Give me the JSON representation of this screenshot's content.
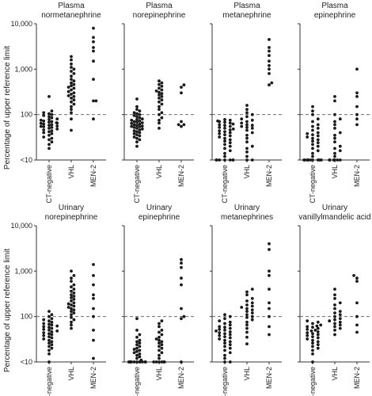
{
  "figure": {
    "ylabel": "Percentage of upper reference limit",
    "reference_line_value": 100
  },
  "chart_data": [
    {
      "type": "scatter",
      "title": "Plasma\nnormetanephrine",
      "categories": [
        "CT-negative",
        "VHL",
        "MEN-2"
      ],
      "y_scale": "log",
      "ylim": [
        "<10",
        10000
      ],
      "y_ticks": [
        "<10",
        "100",
        "1,000",
        "10,000"
      ],
      "series": [
        {
          "values": [
            18,
            22,
            25,
            28,
            30,
            32,
            35,
            38,
            40,
            42,
            44,
            46,
            48,
            50,
            52,
            54,
            55,
            56,
            58,
            60,
            62,
            64,
            65,
            66,
            68,
            70,
            72,
            75,
            78,
            80,
            85,
            90,
            95,
            100,
            105,
            110,
            120,
            250
          ]
        },
        {
          "values": [
            45,
            80,
            110,
            130,
            150,
            170,
            190,
            210,
            230,
            250,
            260,
            280,
            300,
            320,
            350,
            380,
            400,
            430,
            460,
            500,
            550,
            600,
            700,
            800,
            900,
            1000,
            1100,
            1300,
            1600,
            1900
          ]
        },
        {
          "values": [
            80,
            200,
            200,
            600,
            1500,
            2500,
            3000,
            4000,
            5000,
            8000
          ]
        }
      ]
    },
    {
      "type": "scatter",
      "title": "Plasma\nnorepinephrine",
      "categories": [
        "CT-negative",
        "VHL",
        "MEN-2"
      ],
      "y_scale": "log",
      "ylim": [
        "<10",
        10000
      ],
      "y_ticks": [
        "<10",
        "100",
        "1,000",
        "10,000"
      ],
      "series": [
        {
          "values": [
            20,
            25,
            28,
            30,
            32,
            34,
            36,
            38,
            40,
            42,
            44,
            46,
            48,
            50,
            52,
            54,
            55,
            56,
            58,
            60,
            62,
            64,
            66,
            68,
            70,
            72,
            75,
            78,
            80,
            85,
            90,
            95,
            100,
            105,
            110,
            120,
            130,
            150,
            220
          ]
        },
        {
          "values": [
            50,
            65,
            75,
            85,
            100,
            110,
            130,
            150,
            170,
            190,
            210,
            230,
            250,
            270,
            290,
            310,
            330,
            350,
            380,
            420,
            460,
            500,
            550
          ]
        },
        {
          "values": [
            55,
            60,
            60,
            70,
            300,
            400,
            450
          ]
        }
      ]
    },
    {
      "type": "scatter",
      "title": "Plasma\nmetanephrine",
      "categories": [
        "CT-negative",
        "VHL",
        "MEN-2"
      ],
      "y_scale": "log",
      "ylim": [
        "<10",
        10000
      ],
      "y_ticks": [
        "<10",
        "100",
        "1,000",
        "10,000"
      ],
      "series": [
        {
          "values": [
            10,
            10,
            10,
            10,
            10,
            10,
            10,
            12,
            14,
            16,
            18,
            20,
            22,
            24,
            26,
            28,
            30,
            32,
            34,
            36,
            38,
            40,
            42,
            44,
            46,
            48,
            50,
            52,
            55,
            58,
            60,
            62,
            65,
            68,
            70,
            72,
            75,
            78
          ]
        },
        {
          "values": [
            10,
            10,
            12,
            15,
            18,
            20,
            25,
            30,
            35,
            40,
            45,
            50,
            52,
            55,
            58,
            60,
            65,
            70,
            75,
            80,
            90,
            100,
            110,
            130,
            160
          ]
        },
        {
          "values": [
            450,
            500,
            800,
            1000,
            1200,
            1500,
            2000,
            2500,
            3000,
            4500
          ]
        }
      ]
    },
    {
      "type": "scatter",
      "title": "Plasma\nepinephrine",
      "categories": [
        "CT-negative",
        "VHL",
        "MEN-2"
      ],
      "y_scale": "log",
      "ylim": [
        "<10",
        10000
      ],
      "y_ticks": [
        "<10",
        "100",
        "1,000",
        "10,000"
      ],
      "series": [
        {
          "values": [
            10,
            10,
            10,
            10,
            10,
            10,
            10,
            10,
            10,
            10,
            12,
            14,
            16,
            18,
            20,
            22,
            24,
            26,
            28,
            30,
            32,
            34,
            36,
            38,
            40,
            45,
            50,
            55,
            60,
            70,
            80,
            100,
            120,
            150
          ]
        },
        {
          "values": [
            10,
            10,
            10,
            10,
            10,
            10,
            12,
            14,
            16,
            18,
            20,
            25,
            30,
            35,
            40,
            50,
            60,
            70,
            80,
            100,
            200,
            250
          ]
        },
        {
          "values": [
            60,
            80,
            100,
            150,
            250,
            300,
            1000
          ]
        }
      ]
    },
    {
      "type": "scatter",
      "title": "Urinary\nnorepinephrine",
      "categories": [
        "CT-negative",
        "VHL",
        "MEN-2"
      ],
      "y_scale": "log",
      "ylim": [
        "<10",
        10000
      ],
      "y_ticks": [
        "<10",
        "100",
        "1,000",
        "10,000"
      ],
      "series": [
        {
          "values": [
            10,
            15,
            18,
            20,
            22,
            24,
            26,
            28,
            30,
            32,
            34,
            36,
            38,
            40,
            42,
            44,
            46,
            48,
            50,
            52,
            55,
            58,
            60,
            62,
            65,
            68,
            70,
            75,
            80,
            85,
            90,
            100,
            110,
            130
          ]
        },
        {
          "values": [
            55,
            65,
            75,
            85,
            95,
            110,
            120,
            130,
            140,
            150,
            160,
            170,
            180,
            190,
            200,
            220,
            240,
            260,
            280,
            300,
            330,
            360,
            400,
            450,
            500,
            600,
            700,
            800,
            1000
          ]
        },
        {
          "values": [
            12,
            30,
            50,
            100,
            150,
            250,
            300,
            500,
            800,
            1400
          ]
        }
      ]
    },
    {
      "type": "scatter",
      "title": "Urinary\nepinephrine",
      "categories": [
        "CT-negative",
        "VHL",
        "MEN-2"
      ],
      "y_scale": "log",
      "ylim": [
        "<10",
        10000
      ],
      "y_ticks": [
        "<10",
        "100",
        "1,000",
        "10,000"
      ],
      "series": [
        {
          "values": [
            10,
            10,
            10,
            10,
            10,
            10,
            10,
            10,
            10,
            10,
            10,
            10,
            11,
            12,
            13,
            14,
            15,
            16,
            17,
            18,
            19,
            20,
            22,
            24,
            26,
            28,
            30,
            35,
            40,
            50,
            90
          ]
        },
        {
          "values": [
            10,
            10,
            10,
            10,
            10,
            10,
            12,
            14,
            16,
            18,
            20,
            22,
            24,
            26,
            28,
            30,
            32,
            35,
            40,
            45,
            50,
            60,
            70,
            80
          ]
        },
        {
          "values": [
            10,
            90,
            100,
            150,
            500,
            700,
            1200,
            1500,
            1800
          ]
        }
      ]
    },
    {
      "type": "scatter",
      "title": "Urinary\nmetanephrines",
      "categories": [
        "CT-negative",
        "VHL",
        "MEN-2"
      ],
      "y_scale": "log",
      "ylim": [
        "<10",
        10000
      ],
      "y_ticks": [
        "<10",
        "100",
        "1,000",
        "10,000"
      ],
      "series": [
        {
          "values": [
            10,
            10,
            12,
            14,
            16,
            18,
            20,
            22,
            24,
            26,
            28,
            30,
            32,
            34,
            36,
            38,
            40,
            42,
            44,
            46,
            48,
            50,
            52,
            55,
            58,
            60,
            65,
            70,
            75,
            80,
            90,
            100,
            110
          ]
        },
        {
          "values": [
            25,
            35,
            45,
            55,
            65,
            75,
            85,
            95,
            100,
            110,
            120,
            130,
            140,
            150,
            160,
            170,
            180,
            200,
            220,
            250,
            300,
            350,
            400
          ]
        },
        {
          "values": [
            40,
            60,
            100,
            150,
            200,
            400,
            800,
            1000,
            3000,
            4000
          ]
        }
      ]
    },
    {
      "type": "scatter",
      "title": "Urinary\nvanillylmandelic acid",
      "categories": [
        "CT-negative",
        "VHL",
        "MEN-2"
      ],
      "y_scale": "log",
      "ylim": [
        "<10",
        10000
      ],
      "y_ticks": [
        "<10",
        "100",
        "1,000",
        "10,000"
      ],
      "series": [
        {
          "values": [
            10,
            15,
            18,
            20,
            22,
            24,
            26,
            28,
            30,
            32,
            34,
            36,
            38,
            40,
            42,
            44,
            46,
            48,
            50,
            52,
            55,
            58,
            60,
            62,
            65,
            70,
            75,
            80
          ]
        },
        {
          "values": [
            40,
            50,
            55,
            60,
            65,
            70,
            75,
            80,
            85,
            90,
            100,
            110,
            120,
            130,
            150,
            180,
            200,
            250,
            300,
            400
          ]
        },
        {
          "values": [
            45,
            65,
            100,
            200,
            600,
            700,
            800
          ]
        }
      ]
    }
  ]
}
